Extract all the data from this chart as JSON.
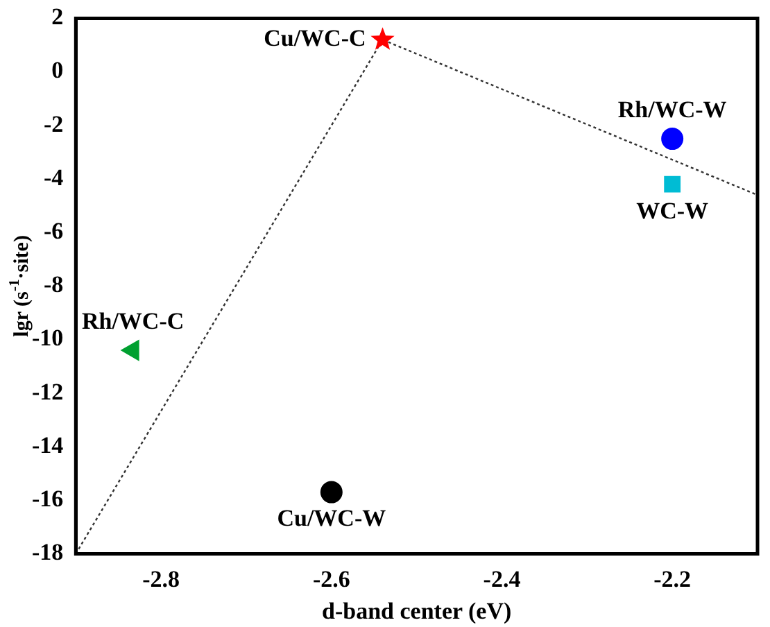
{
  "chart_data": {
    "type": "scatter",
    "xlabel": "d-band center (eV)",
    "ylabel": "lgr (s$^{-1}$·site)",
    "xlim": [
      -2.9,
      -2.1
    ],
    "xticks": [
      -2.8,
      -2.6,
      -2.4,
      -2.2
    ],
    "ylim": [
      -18,
      2
    ],
    "yticks": [
      -18,
      -16,
      -14,
      -12,
      -10,
      -8,
      -6,
      -4,
      -2,
      0,
      2
    ],
    "grid": false,
    "legend": false,
    "series": [
      {
        "type": "line",
        "color": "#333333",
        "x": [
          -2.9,
          -2.54,
          -2.1
        ],
        "values": [
          -18,
          1.2,
          -4.6
        ],
        "marker": "none",
        "line_style": "dotted"
      },
      {
        "name": "Cu/WC-C",
        "color": "#ff0000",
        "x": [
          -2.54
        ],
        "values": [
          1.2
        ],
        "marker": "star"
      },
      {
        "name": "Rh/WC-W",
        "color": "#0000ff",
        "x": [
          -2.2
        ],
        "values": [
          -2.5
        ],
        "marker": "circle"
      },
      {
        "name": "WC-W",
        "color": "#00bcd4",
        "x": [
          -2.2
        ],
        "values": [
          -4.2
        ],
        "marker": "square"
      },
      {
        "name": "Rh/WC-C",
        "color": "#00a030",
        "x": [
          -2.833
        ],
        "values": [
          -10.4
        ],
        "marker": "triangle"
      },
      {
        "name": "Cu/WC-W",
        "color": "#000000",
        "x": [
          -2.6
        ],
        "values": [
          -15.7
        ],
        "marker": "circle"
      }
    ]
  }
}
